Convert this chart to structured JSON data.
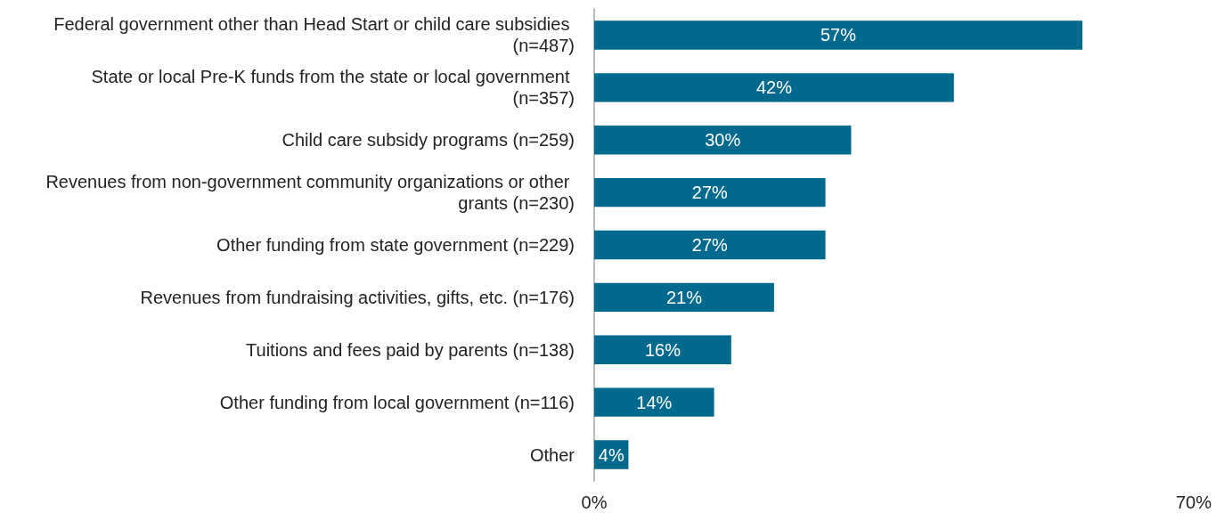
{
  "chart_data": {
    "type": "bar",
    "orientation": "horizontal",
    "categories": [
      "Federal government other than Head Start or child care subsidies (n=487)",
      "State or local Pre-K funds from the state or local government (n=357)",
      "Child care subsidy programs (n=259)",
      "Revenues from non-government community organizations or other grants (n=230)",
      "Other funding from state government (n=229)",
      "Revenues from fundraising activities, gifts, etc. (n=176)",
      "Tuitions and fees paid by parents (n=138)",
      "Other funding from local government (n=116)",
      "Other"
    ],
    "values": [
      57,
      42,
      30,
      27,
      27,
      21,
      16,
      14,
      4
    ],
    "value_labels": [
      "57%",
      "42%",
      "30%",
      "27%",
      "27%",
      "21%",
      "16%",
      "14%",
      "4%"
    ],
    "color": "#006a8e",
    "xlim": [
      0,
      70
    ],
    "xticks": [
      {
        "value": 0,
        "label": "0%"
      },
      {
        "value": 70,
        "label": "70%"
      }
    ],
    "grid": false
  }
}
